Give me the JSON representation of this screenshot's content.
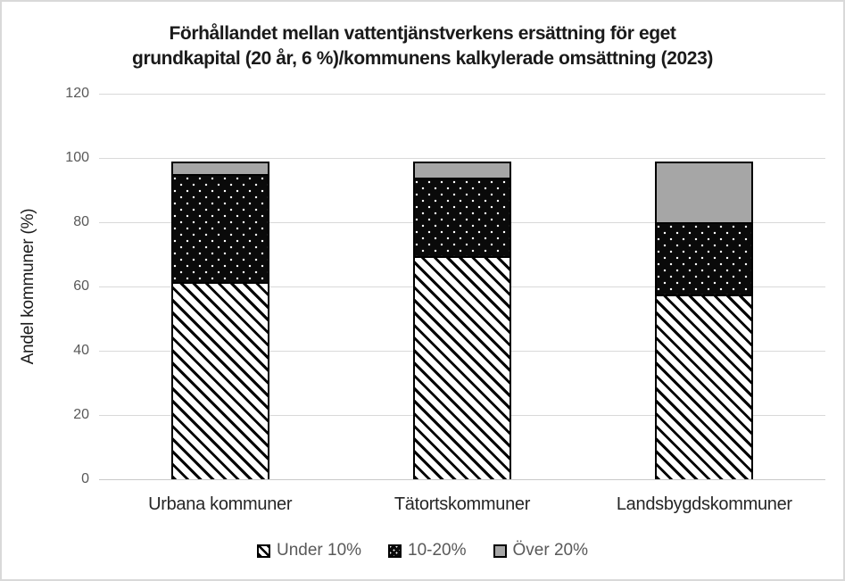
{
  "chart_data": {
    "type": "bar",
    "stacked": true,
    "title_lines": [
      "Förhållandet mellan vattentjänstverkens ersättning för eget",
      "grundkapital (20 år, 6 %)/kommunens kalkylerade omsättning (2023)"
    ],
    "ylabel": "Andel kommuner (%)",
    "xlabel": "",
    "ylim": [
      0,
      120
    ],
    "yticks": [
      0,
      20,
      40,
      60,
      80,
      100,
      120
    ],
    "grid": "horizontal-only",
    "legend_position": "bottom",
    "categories": [
      "Urbana kommuner",
      "Tätortskommuner",
      "Landsbygdskommuner"
    ],
    "series": [
      {
        "name": "Under 10%",
        "pattern": "diagonal-hatch",
        "values": [
          62,
          70,
          58
        ]
      },
      {
        "name": "10-20%",
        "pattern": "white-dots-on-black",
        "values": [
          34,
          25,
          23
        ]
      },
      {
        "name": "Över 20%",
        "pattern": "solid-gray",
        "values": [
          4,
          5,
          19
        ]
      }
    ],
    "colors": {
      "hatch_foreground": "#000000",
      "hatch_background": "#ffffff",
      "dots_background": "#0a0a0a",
      "dots_foreground": "#ffffff",
      "gray_fill": "#a6a6a6",
      "bar_border": "#000000",
      "gridline": "#d9d9d9",
      "tick_label_text": "#595959",
      "category_label_text": "#262626",
      "legend_text": "#595959",
      "title_text": "#1a1a1a",
      "frame_border": "#d9d9d9"
    }
  }
}
